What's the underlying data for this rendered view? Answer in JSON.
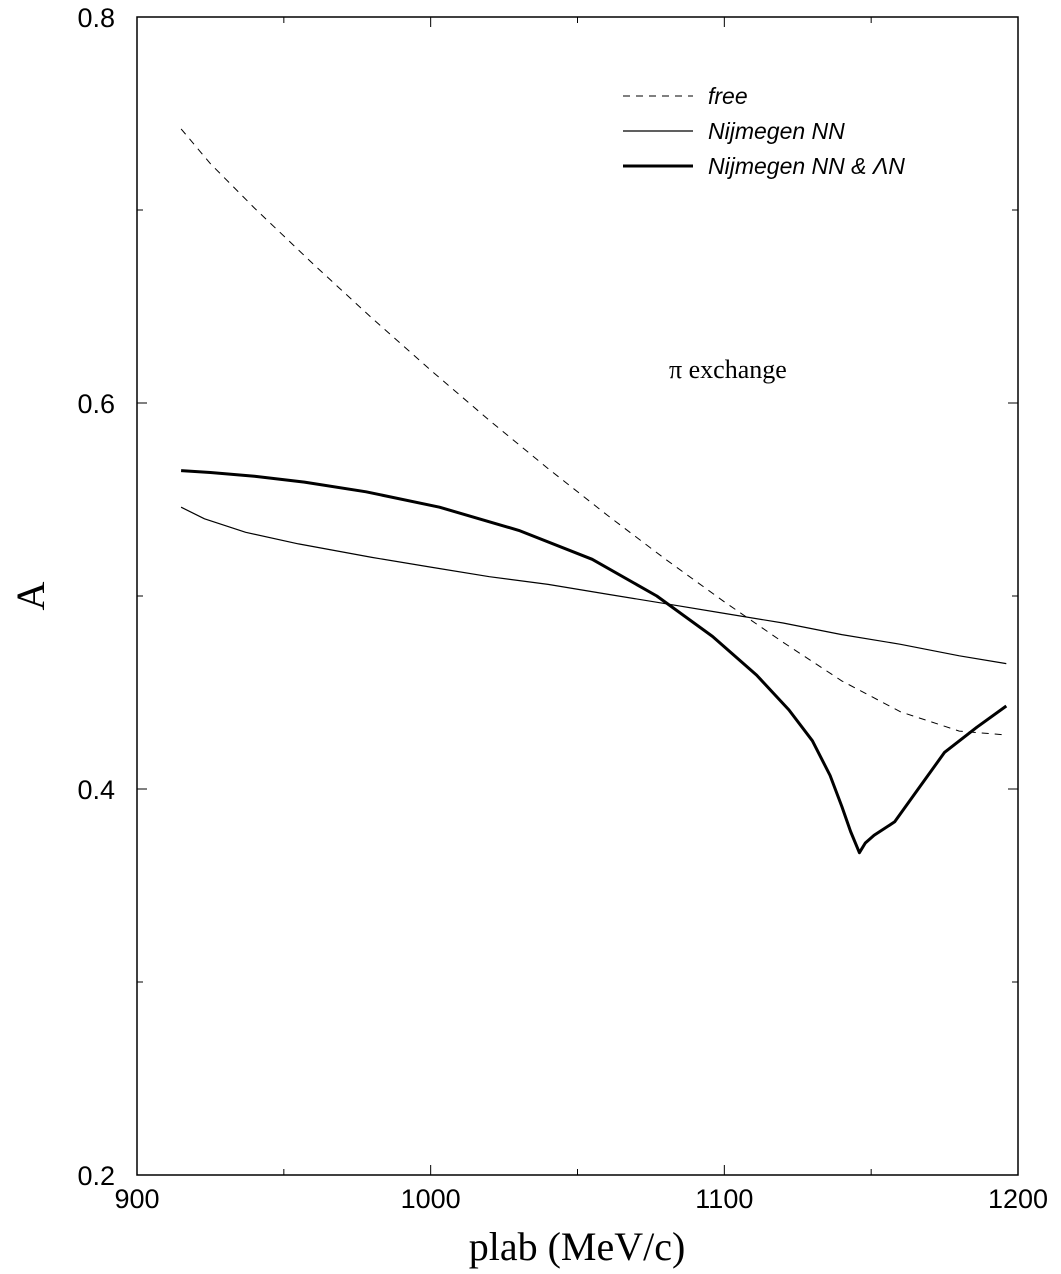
{
  "chart_data": {
    "type": "line",
    "title": "",
    "xlabel": "plab (MeV/c)",
    "ylabel": "A",
    "xlim": [
      900,
      1200
    ],
    "ylim": [
      0.2,
      0.8
    ],
    "x_ticks": [
      900,
      1000,
      1100,
      1200
    ],
    "x_tick_labels": [
      "900",
      "1000",
      "1100",
      "1200"
    ],
    "x_minor_ticks": [
      950,
      1050,
      1150
    ],
    "y_ticks": [
      0.2,
      0.4,
      0.6,
      0.8
    ],
    "y_tick_labels": [
      "0.2",
      "0.4",
      "0.6",
      "0.8"
    ],
    "y_minor_ticks": [
      0.3,
      0.5,
      0.7
    ],
    "grid": false,
    "legend_position": "top-right",
    "annotation": "π exchange",
    "series": [
      {
        "name": "free",
        "style": "dashed",
        "color": "#000000",
        "points": [
          [
            915,
            0.742
          ],
          [
            925,
            0.724
          ],
          [
            940,
            0.701
          ],
          [
            960,
            0.672
          ],
          [
            980,
            0.644
          ],
          [
            1000,
            0.617
          ],
          [
            1020,
            0.591
          ],
          [
            1040,
            0.566
          ],
          [
            1060,
            0.542
          ],
          [
            1080,
            0.519
          ],
          [
            1100,
            0.497
          ],
          [
            1120,
            0.476
          ],
          [
            1140,
            0.456
          ],
          [
            1160,
            0.44
          ],
          [
            1180,
            0.43
          ],
          [
            1196,
            0.428
          ]
        ]
      },
      {
        "name": "Nijmegen NN",
        "style": "thin",
        "color": "#000000",
        "points": [
          [
            915,
            0.546
          ],
          [
            923,
            0.54
          ],
          [
            937,
            0.533
          ],
          [
            955,
            0.527
          ],
          [
            980,
            0.52
          ],
          [
            1000,
            0.515
          ],
          [
            1020,
            0.51
          ],
          [
            1040,
            0.506
          ],
          [
            1060,
            0.501
          ],
          [
            1080,
            0.496
          ],
          [
            1100,
            0.491
          ],
          [
            1120,
            0.486
          ],
          [
            1140,
            0.48
          ],
          [
            1160,
            0.475
          ],
          [
            1180,
            0.469
          ],
          [
            1196,
            0.465
          ]
        ]
      },
      {
        "name": "Nijmegen NN & ΛN",
        "style": "thick",
        "color": "#000000",
        "points": [
          [
            915,
            0.565
          ],
          [
            925,
            0.564
          ],
          [
            940,
            0.562
          ],
          [
            957,
            0.559
          ],
          [
            978,
            0.554
          ],
          [
            1003,
            0.546
          ],
          [
            1030,
            0.534
          ],
          [
            1055,
            0.519
          ],
          [
            1077,
            0.5
          ],
          [
            1096,
            0.479
          ],
          [
            1111,
            0.459
          ],
          [
            1122,
            0.441
          ],
          [
            1130,
            0.425
          ],
          [
            1136,
            0.407
          ],
          [
            1140,
            0.391
          ],
          [
            1143,
            0.378
          ],
          [
            1146,
            0.367
          ],
          [
            1148,
            0.372
          ],
          [
            1151,
            0.376
          ],
          [
            1158,
            0.383
          ],
          [
            1166,
            0.4
          ],
          [
            1175,
            0.419
          ],
          [
            1186,
            0.432
          ],
          [
            1196,
            0.443
          ]
        ]
      }
    ]
  }
}
